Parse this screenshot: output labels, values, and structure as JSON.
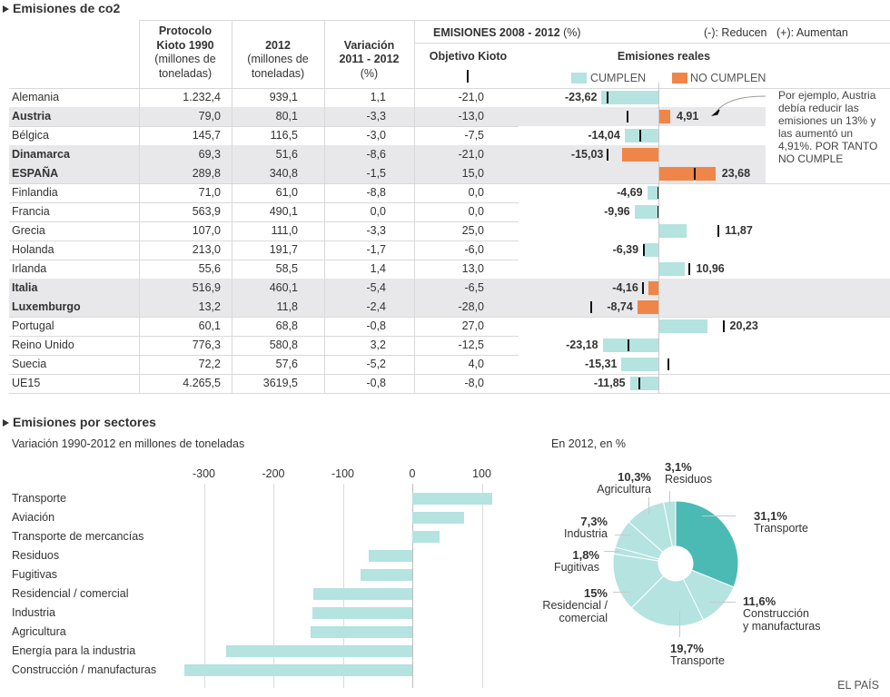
{
  "co2": {
    "title": "Emisiones de co2",
    "headers": {
      "kioto1990": {
        "bold": [
          "Protocolo",
          "Kioto 1990"
        ],
        "normal": [
          "(millones de",
          "toneladas)"
        ]
      },
      "y2012": {
        "bold": [
          "2012"
        ],
        "normal": [
          "(millones de",
          "toneladas)"
        ]
      },
      "variacion": {
        "bold": [
          "Variación",
          "2011 - 2012"
        ],
        "normal": [
          "(%)"
        ]
      },
      "emisiones_title": "EMISIONES 2008 - 2012",
      "emisiones_unit": "(%)",
      "reducen": "(-): Reducen",
      "aumentan": "(+): Aumentan",
      "objetivo": "Objetivo Kioto",
      "reales": "Emisiones reales",
      "legend": [
        {
          "label": "CUMPLEN",
          "color": "#b4e3e0"
        },
        {
          "label": "NO CUMPLEN",
          "color": "#ef8548"
        }
      ]
    },
    "rows": [
      {
        "pais": "Alemania",
        "kioto1990": "1.232,4",
        "y2012": "939,1",
        "variacion": "1,1",
        "objetivo": "-21,0",
        "reales": "-23,62"
      },
      {
        "pais": "Austria",
        "kioto1990": "79,0",
        "y2012": "80,1",
        "variacion": "-3,3",
        "objetivo": "-13,0",
        "reales": "4,91"
      },
      {
        "pais": "Bélgica",
        "kioto1990": "145,7",
        "y2012": "116,5",
        "variacion": "-3,0",
        "objetivo": "-7,5",
        "reales": "-14,04"
      },
      {
        "pais": "Dinamarca",
        "kioto1990": "69,3",
        "y2012": "51,6",
        "variacion": "-8,6",
        "objetivo": "-21,0",
        "reales": "-15,03"
      },
      {
        "pais": "ESPAÑA",
        "kioto1990": "289,8",
        "y2012": "340,8",
        "variacion": "-1,5",
        "objetivo": "15,0",
        "reales": "23,68"
      },
      {
        "pais": "Finlandia",
        "kioto1990": "71,0",
        "y2012": "61,0",
        "variacion": "-8,8",
        "objetivo": "0,0",
        "reales": "-4,69"
      },
      {
        "pais": "Francia",
        "kioto1990": "563,9",
        "y2012": "490,1",
        "variacion": "0,0",
        "objetivo": "0,0",
        "reales": "-9,96"
      },
      {
        "pais": "Grecia",
        "kioto1990": "107,0",
        "y2012": "111,0",
        "variacion": "-3,3",
        "objetivo": "25,0",
        "reales": "11,87"
      },
      {
        "pais": "Holanda",
        "kioto1990": "213,0",
        "y2012": "191,7",
        "variacion": "-1,7",
        "objetivo": "-6,0",
        "reales": "-6,39"
      },
      {
        "pais": "Irlanda",
        "kioto1990": "55,6",
        "y2012": "58,5",
        "variacion": "1,4",
        "objetivo": "13,0",
        "reales": "10,96"
      },
      {
        "pais": "Italia",
        "kioto1990": "516,9",
        "y2012": "460,1",
        "variacion": "-5,4",
        "objetivo": "-6,5",
        "reales": "-4,16"
      },
      {
        "pais": "Luxemburgo",
        "kioto1990": "13,2",
        "y2012": "11,8",
        "variacion": "-2,4",
        "objetivo": "-28,0",
        "reales": "-8,74"
      },
      {
        "pais": "Portugal",
        "kioto1990": "60,1",
        "y2012": "68,8",
        "variacion": "-0,8",
        "objetivo": "27,0",
        "reales": "20,23"
      },
      {
        "pais": "Reino Unido",
        "kioto1990": "776,3",
        "y2012": "580,8",
        "variacion": "3,2",
        "objetivo": "-12,5",
        "reales": "-23,18"
      },
      {
        "pais": "Suecia",
        "kioto1990": "72,2",
        "y2012": "57,6",
        "variacion": "-5,2",
        "objetivo": "4,0",
        "reales": "-15,31"
      },
      {
        "pais": "UE15",
        "kioto1990": "4.265,5",
        "y2012": "3619,5",
        "variacion": "-0,8",
        "objetivo": "-8,0",
        "reales": "-11,85"
      }
    ],
    "annotation": [
      "Por ejemplo, Austria",
      "debía reducir las",
      "emisiones un 13% y",
      "las aumentó un",
      "4,91%. POR TANTO",
      "NO CUMPLE"
    ]
  },
  "sectores": {
    "title": "Emisiones por sectores"
  },
  "footer": {
    "source": "EL PAÍS"
  },
  "colors": {
    "cumple": "#b4e3e0",
    "no_cumple": "#ef8548",
    "pie_highlight": "#4cbab4",
    "pie_base": "#b4e3e0",
    "row_highlight": "#e8e8ea",
    "kioto_marker": "#111111"
  },
  "chart_data": [
    {
      "type": "bar",
      "title": "EMISIONES 2008 - 2012 (%)",
      "categories": [
        "Alemania",
        "Austria",
        "Bélgica",
        "Dinamarca",
        "ESPAÑA",
        "Finlandia",
        "Francia",
        "Grecia",
        "Holanda",
        "Irlanda",
        "Italia",
        "Luxemburgo",
        "Portugal",
        "Reino Unido",
        "Suecia",
        "UE15"
      ],
      "series": [
        {
          "name": "Objetivo Kioto",
          "values": [
            -21.0,
            -13.0,
            -7.5,
            -21.0,
            15.0,
            0.0,
            0.0,
            25.0,
            -6.0,
            13.0,
            -6.5,
            -28.0,
            27.0,
            -12.5,
            4.0,
            -8.0
          ]
        },
        {
          "name": "Emisiones reales",
          "values": [
            -23.62,
            4.91,
            -14.04,
            -15.03,
            23.68,
            -4.69,
            -9.96,
            11.87,
            -6.39,
            10.96,
            -4.16,
            -8.74,
            20.23,
            -23.18,
            -15.31,
            -11.85
          ]
        }
      ],
      "status": [
        "cumple",
        "no_cumple",
        "cumple",
        "no_cumple",
        "no_cumple",
        "cumple",
        "cumple",
        "cumple",
        "cumple",
        "cumple",
        "no_cumple",
        "no_cumple",
        "cumple",
        "cumple",
        "cumple",
        "cumple"
      ],
      "legend": [
        "CUMPLEN",
        "NO CUMPLEN"
      ],
      "xlabel": "",
      "ylabel": ""
    },
    {
      "type": "bar",
      "orientation": "horizontal",
      "title": "Emisiones por sectores",
      "subtitle": "Variación 1990-2012 en millones de toneladas",
      "categories": [
        "Transporte",
        "Aviación",
        "Transporte de mercancías",
        "Residuos",
        "Fugitivas",
        "Residencial / comercial",
        "Industria",
        "Agricultura",
        "Energía para la industria",
        "Construcción / manufacturas"
      ],
      "values": [
        115,
        74,
        39,
        -63,
        -74,
        -143,
        -144,
        -147,
        -268,
        -328
      ],
      "xticks": [
        -300,
        -200,
        -100,
        0,
        100
      ],
      "xlim": [
        -330,
        120
      ],
      "grid": true,
      "xlabel": "",
      "ylabel": ""
    },
    {
      "type": "pie",
      "title": "En 2012, en %",
      "donut": true,
      "slices": [
        {
          "value": 31.1,
          "pct_label": "31,1%",
          "name_lines": [
            "Transporte"
          ],
          "highlight": true
        },
        {
          "value": 11.6,
          "pct_label": "11,6%",
          "name_lines": [
            "Construcción",
            "y manufacturas"
          ],
          "highlight": false
        },
        {
          "value": 19.7,
          "pct_label": "19,7%",
          "name_lines": [
            "Transporte"
          ],
          "highlight": false
        },
        {
          "value": 15.0,
          "pct_label": "15%",
          "name_lines": [
            "Residencial /",
            "comercial"
          ],
          "highlight": false
        },
        {
          "value": 1.8,
          "pct_label": "1,8%",
          "name_lines": [
            "Fugitivas"
          ],
          "highlight": false
        },
        {
          "value": 7.3,
          "pct_label": "7,3%",
          "name_lines": [
            "Industria"
          ],
          "highlight": false
        },
        {
          "value": 10.3,
          "pct_label": "10,3%",
          "name_lines": [
            "Agricultura"
          ],
          "highlight": false
        },
        {
          "value": 3.1,
          "pct_label": "3,1%",
          "name_lines": [
            "Residuos"
          ],
          "highlight": false
        }
      ]
    }
  ]
}
